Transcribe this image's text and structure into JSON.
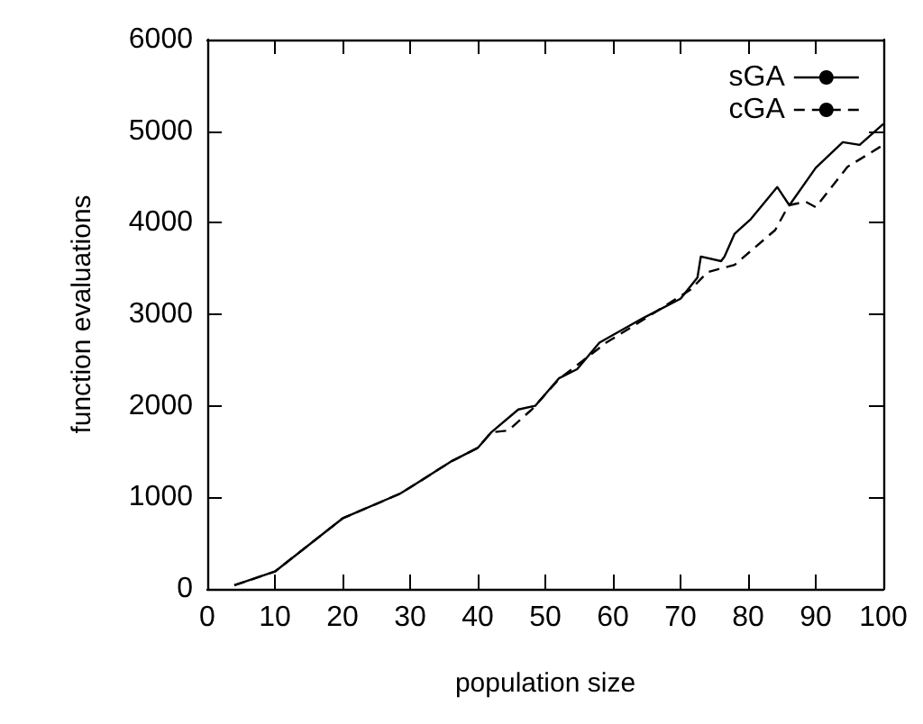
{
  "chart_data": {
    "type": "line",
    "xlabel": "population size",
    "ylabel": "function evaluations",
    "xlim": [
      0,
      100
    ],
    "xticks": [
      0,
      10,
      20,
      30,
      40,
      50,
      60,
      70,
      80,
      90,
      100
    ],
    "ylim": [
      0,
      6000
    ],
    "yticks": [
      0,
      1000,
      2000,
      3000,
      4000,
      5000,
      6000
    ],
    "grid": false,
    "legend": "top right",
    "marker": "none",
    "series": [
      {
        "name": "sGA",
        "color": "#000000",
        "line_style": "solid",
        "x": [
          4,
          10,
          20,
          28.5,
          30.7,
          36,
          40,
          42,
          46,
          48.5,
          52,
          54.7,
          58,
          64.5,
          70,
          72.5,
          73,
          76,
          76.5,
          78,
          80.4,
          84.3,
          86.1,
          90,
          94,
          96.5,
          100
        ],
        "values": [
          40,
          190,
          770,
          1040,
          1140,
          1390,
          1540,
          1710,
          1960,
          2000,
          2300,
          2400,
          2690,
          2960,
          3170,
          3400,
          3630,
          3580,
          3630,
          3880,
          4040,
          4390,
          4190,
          4600,
          4880,
          4850,
          5080
        ]
      },
      {
        "name": "cGA",
        "color": "#000000",
        "line_style": "dashed",
        "x": [
          4,
          10,
          20,
          28.5,
          30.7,
          36,
          40,
          42,
          44.5,
          48,
          52,
          59,
          64.5,
          71.5,
          74,
          78,
          84,
          86,
          88.5,
          90,
          94.7,
          100
        ],
        "values": [
          40,
          190,
          770,
          1040,
          1140,
          1390,
          1540,
          1710,
          1730,
          1960,
          2290,
          2690,
          2940,
          3270,
          3460,
          3540,
          3920,
          4190,
          4230,
          4170,
          4610,
          4850
        ]
      }
    ]
  }
}
